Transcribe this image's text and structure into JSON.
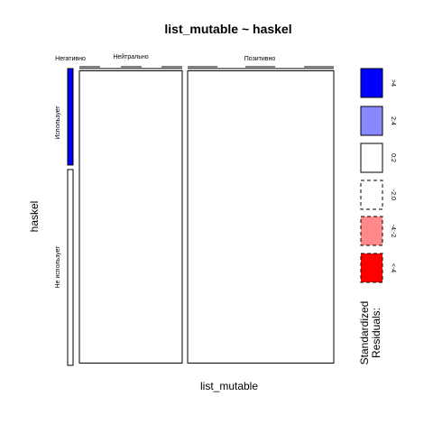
{
  "chart_data": {
    "type": "mosaic",
    "title": "list_mutable ~ haskel",
    "xlabel": "list_mutable",
    "ylabel": "haskel",
    "x_categories": [
      "Негативно",
      "Нейтрально",
      "Позитивно"
    ],
    "y_categories": [
      "Использует",
      "Не использует"
    ],
    "cells": [
      {
        "x": "Негативно",
        "y": "Использует",
        "proportion_x": 0.0,
        "proportion_y_within_x": 0.33,
        "residual_class": ">4"
      },
      {
        "x": "Негативно",
        "y": "Не использует",
        "proportion_x": 0.0,
        "proportion_y_within_x": 0.67,
        "residual_class": "<-2:0"
      },
      {
        "x": "Нейтрально",
        "y": "Использует",
        "proportion_x": 0.36,
        "proportion_y_within_x": 0.0,
        "residual_class": "0:2"
      },
      {
        "x": "Нейтрально",
        "y": "Не использует",
        "proportion_x": 0.36,
        "proportion_y_within_x": 1.0,
        "residual_class": "0:2"
      },
      {
        "x": "Позитивно",
        "y": "Использует",
        "proportion_x": 0.64,
        "proportion_y_within_x": 0.0,
        "residual_class": "0:2"
      },
      {
        "x": "Позитивно",
        "y": "Не использует",
        "proportion_x": 0.64,
        "proportion_y_within_x": 1.0,
        "residual_class": "0:2"
      }
    ],
    "legend": {
      "title_lines": [
        "Standardized",
        "Residuals:"
      ],
      "items": [
        {
          "label": ">4",
          "color": "#0000ff",
          "dashed": false
        },
        {
          "label": "2:4",
          "color": "#8888ff",
          "dashed": false
        },
        {
          "label": "0:2",
          "color": "#ffffff",
          "dashed": false
        },
        {
          "label": "-2:0",
          "color": "#ffffff",
          "dashed": true
        },
        {
          "label": "-4:-2",
          "color": "#ff8888",
          "dashed": true
        },
        {
          "label": "<-4",
          "color": "#ff0000",
          "dashed": true
        }
      ],
      "placement": "right"
    }
  }
}
